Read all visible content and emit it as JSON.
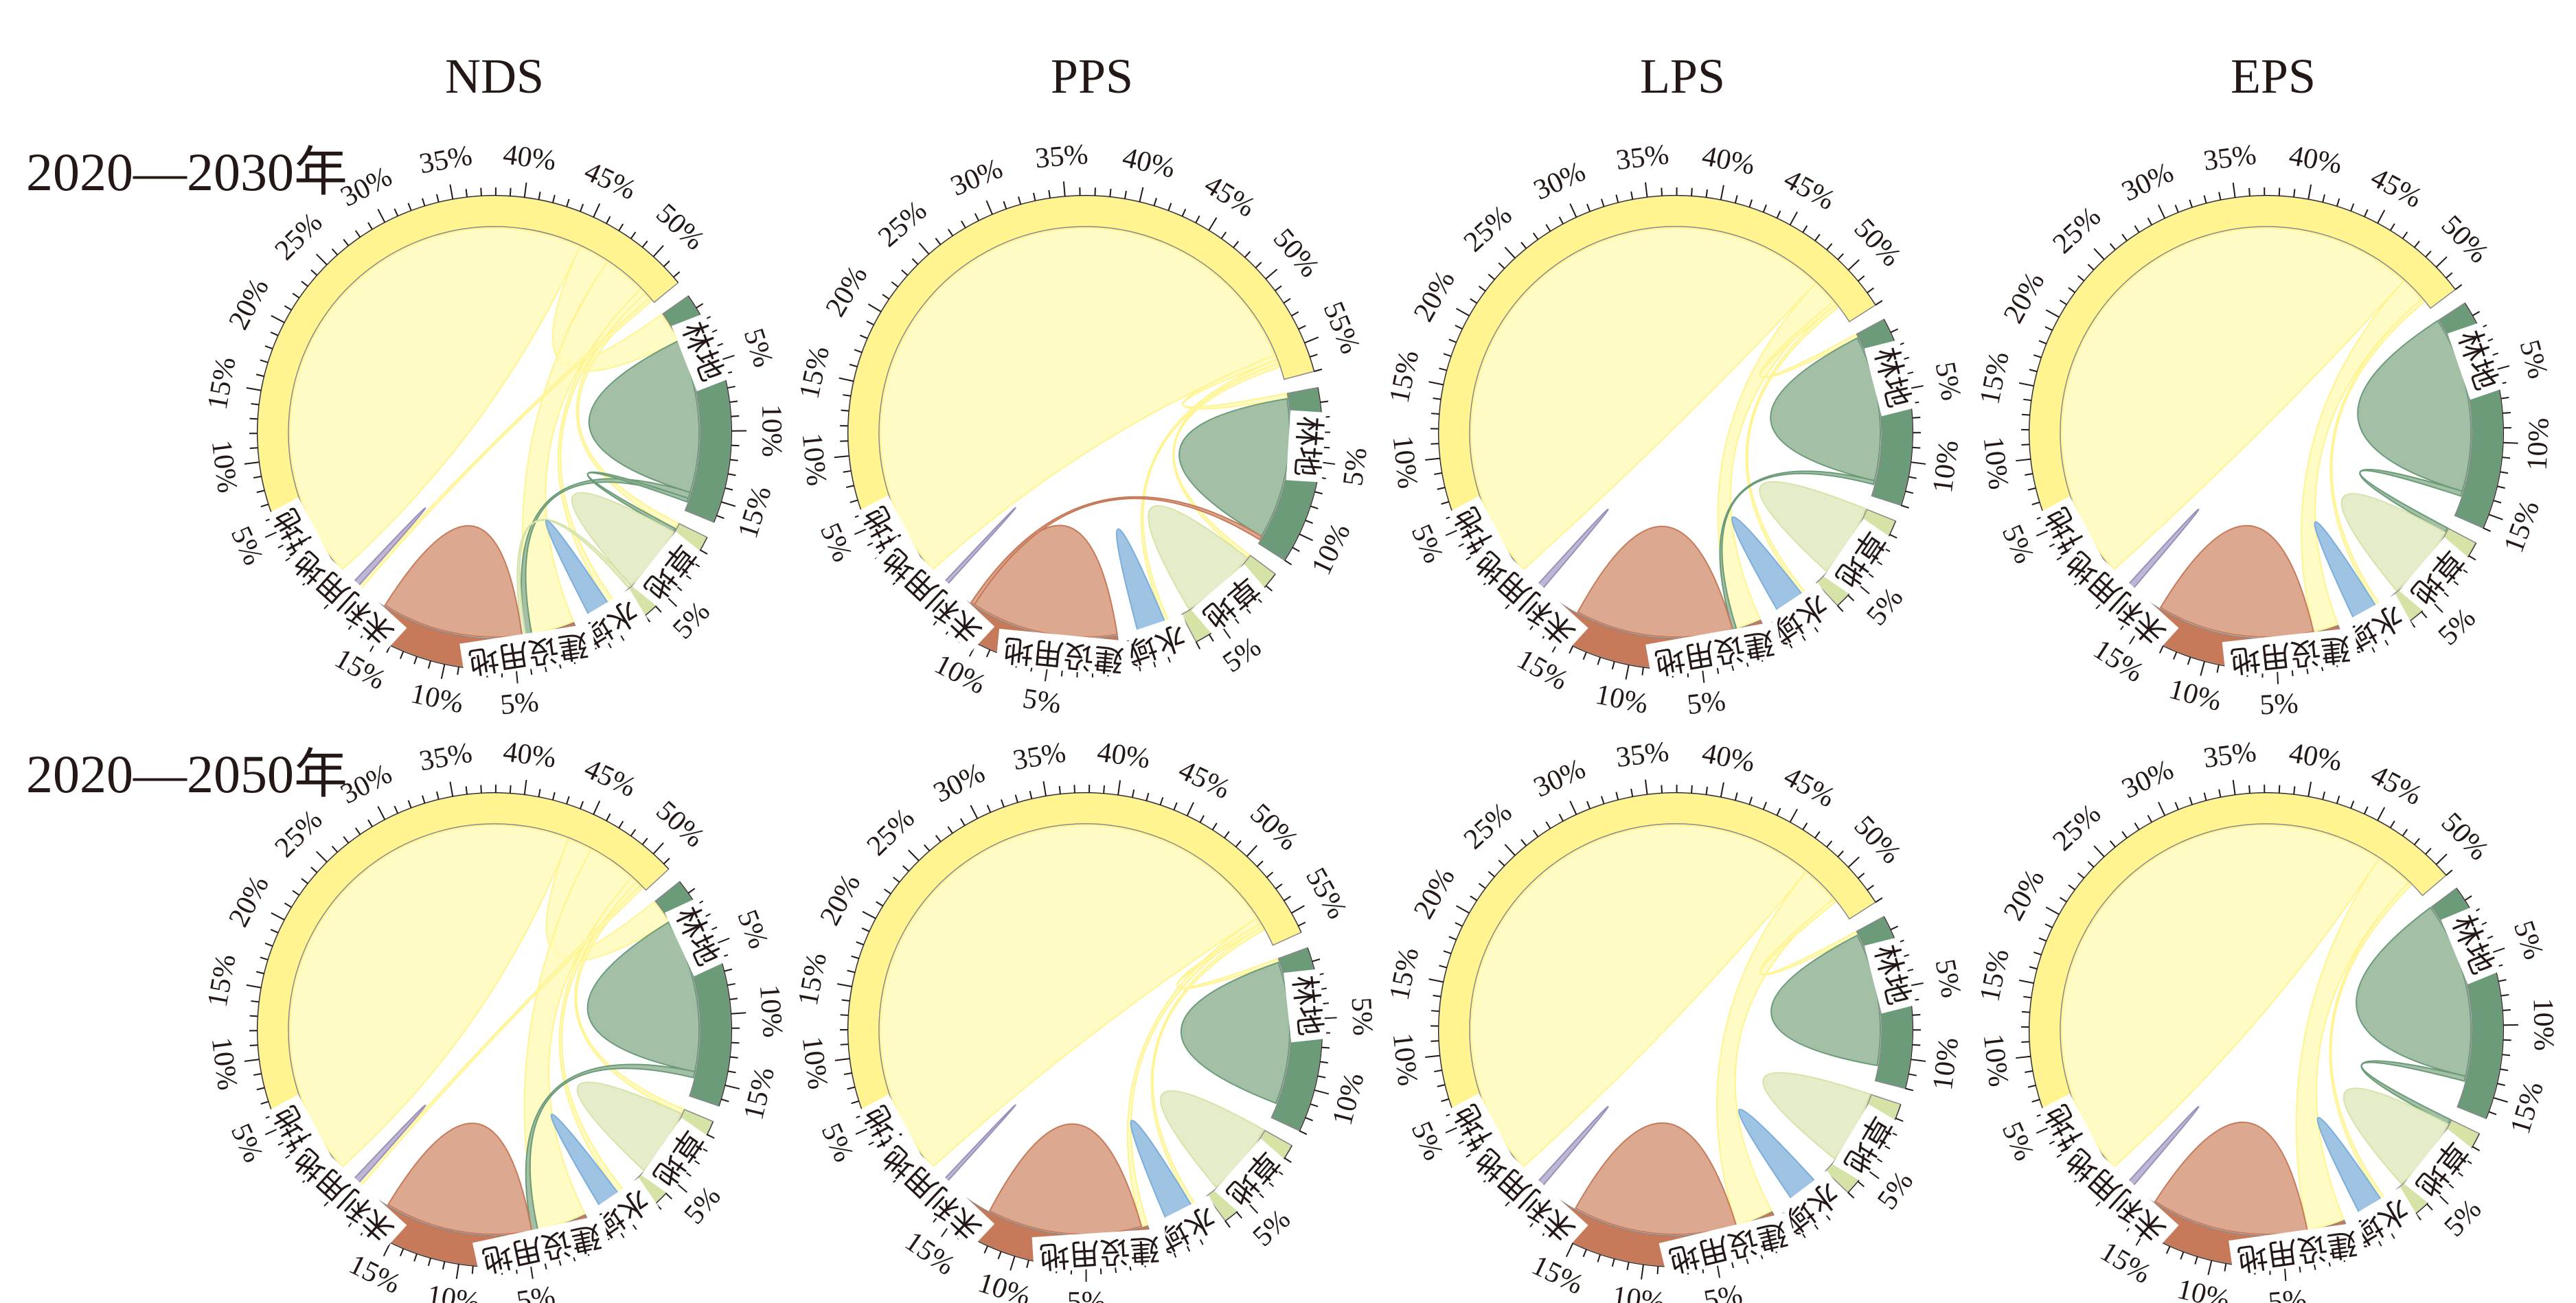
{
  "figure": {
    "column_titles": [
      "NDS",
      "PPS",
      "LPS",
      "EPS"
    ],
    "row_labels": [
      "2020—2030年",
      "2020—2050年"
    ]
  },
  "categories": [
    {
      "key": "cropland",
      "label": "耕地",
      "outer_color": "#fff48f",
      "inner_color": "#fffabb"
    },
    {
      "key": "forest",
      "label": "林地",
      "outer_color": "#6b9b79",
      "inner_color": "#93b597"
    },
    {
      "key": "grassland",
      "label": "草地",
      "outer_color": "#d6e3a6",
      "inner_color": "#e1e9c1"
    },
    {
      "key": "water",
      "label": "水域",
      "outer_color": "#7aaedc",
      "inner_color": "#8db9de"
    },
    {
      "key": "construction",
      "label": "建设用地",
      "outer_color": "#c77a5a",
      "inner_color": "#d6997d"
    },
    {
      "key": "unused",
      "label": "未利用地",
      "outer_color": "#9a8fb8",
      "inner_color": "#b3a9cc"
    }
  ],
  "chart_data": [
    {
      "type": "chord",
      "title": "NDS",
      "row": "2020—2030年",
      "sector_percent": {
        "cropland": 52.5,
        "forest": 16.5,
        "grassland": 7.0,
        "water": 2.5,
        "construction": 17.0,
        "unused": 1.0
      },
      "tick_step_percent": 5,
      "flows": [
        {
          "from": "cropland",
          "to": "cropland",
          "value": 45.0
        },
        {
          "from": "cropland",
          "to": "forest",
          "value": 2.5
        },
        {
          "from": "cropland",
          "to": "construction",
          "value": 3.5
        },
        {
          "from": "cropland",
          "to": "water",
          "value": 0.5
        },
        {
          "from": "cropland",
          "to": "grassland",
          "value": 0.5
        },
        {
          "from": "cropland",
          "to": "unused",
          "value": 0.3
        },
        {
          "from": "forest",
          "to": "forest",
          "value": 12.5
        },
        {
          "from": "forest",
          "to": "construction",
          "value": 0.5
        },
        {
          "from": "forest",
          "to": "grassland",
          "value": 0.3
        },
        {
          "from": "grassland",
          "to": "grassland",
          "value": 5.5
        },
        {
          "from": "grassland",
          "to": "construction",
          "value": 0.3
        },
        {
          "from": "water",
          "to": "water",
          "value": 1.8
        },
        {
          "from": "construction",
          "to": "construction",
          "value": 11.5
        },
        {
          "from": "unused",
          "to": "unused",
          "value": 0.5
        }
      ]
    },
    {
      "type": "chord",
      "title": "PPS",
      "row": "2020—2030年",
      "sector_percent": {
        "cropland": 57.0,
        "forest": 12.0,
        "grassland": 7.0,
        "water": 3.0,
        "construction": 13.0,
        "unused": 0.5
      },
      "tick_step_percent": 5,
      "flows": [
        {
          "from": "cropland",
          "to": "cropland",
          "value": 55.0
        },
        {
          "from": "cropland",
          "to": "forest",
          "value": 0.4
        },
        {
          "from": "cropland",
          "to": "water",
          "value": 0.3
        },
        {
          "from": "cropland",
          "to": "grassland",
          "value": 0.3
        },
        {
          "from": "forest",
          "to": "forest",
          "value": 11.0
        },
        {
          "from": "grassland",
          "to": "grassland",
          "value": 6.0
        },
        {
          "from": "water",
          "to": "water",
          "value": 2.2
        },
        {
          "from": "construction",
          "to": "construction",
          "value": 11.5
        },
        {
          "from": "construction",
          "to": "forest",
          "value": 0.3
        },
        {
          "from": "unused",
          "to": "unused",
          "value": 0.3
        }
      ]
    },
    {
      "type": "chord",
      "title": "LPS",
      "row": "2020—2030年",
      "sector_percent": {
        "cropland": 53.0,
        "forest": 13.0,
        "grassland": 7.0,
        "water": 3.0,
        "construction": 17.0,
        "unused": 1.0
      },
      "tick_step_percent": 5,
      "flows": [
        {
          "from": "cropland",
          "to": "cropland",
          "value": 49.0
        },
        {
          "from": "cropland",
          "to": "construction",
          "value": 2.0
        },
        {
          "from": "cropland",
          "to": "forest",
          "value": 0.3
        },
        {
          "from": "cropland",
          "to": "water",
          "value": 0.3
        },
        {
          "from": "forest",
          "to": "forest",
          "value": 11.5
        },
        {
          "from": "forest",
          "to": "construction",
          "value": 0.3
        },
        {
          "from": "grassland",
          "to": "grassland",
          "value": 5.8
        },
        {
          "from": "water",
          "to": "water",
          "value": 2.3
        },
        {
          "from": "construction",
          "to": "construction",
          "value": 12.5
        },
        {
          "from": "unused",
          "to": "unused",
          "value": 0.5
        }
      ]
    },
    {
      "type": "chord",
      "title": "EPS",
      "row": "2020—2030年",
      "sector_percent": {
        "cropland": 52.0,
        "forest": 16.0,
        "grassland": 7.0,
        "water": 2.5,
        "construction": 16.0,
        "unused": 1.0
      },
      "tick_step_percent": 5,
      "flows": [
        {
          "from": "cropland",
          "to": "cropland",
          "value": 49.0
        },
        {
          "from": "cropland",
          "to": "construction",
          "value": 2.0
        },
        {
          "from": "cropland",
          "to": "water",
          "value": 0.3
        },
        {
          "from": "forest",
          "to": "forest",
          "value": 14.0
        },
        {
          "from": "forest",
          "to": "grassland",
          "value": 0.4
        },
        {
          "from": "grassland",
          "to": "grassland",
          "value": 6.0
        },
        {
          "from": "water",
          "to": "water",
          "value": 2.0
        },
        {
          "from": "construction",
          "to": "construction",
          "value": 12.5
        },
        {
          "from": "unused",
          "to": "unused",
          "value": 0.5
        }
      ]
    },
    {
      "type": "chord",
      "title": "NDS",
      "row": "2020—2050年",
      "sector_percent": {
        "cropland": 51.5,
        "forest": 16.5,
        "grassland": 7.0,
        "water": 2.5,
        "construction": 18.0,
        "unused": 1.0
      },
      "tick_step_percent": 5,
      "flows": [
        {
          "from": "cropland",
          "to": "cropland",
          "value": 44.0
        },
        {
          "from": "cropland",
          "to": "forest",
          "value": 2.0
        },
        {
          "from": "cropland",
          "to": "construction",
          "value": 4.0
        },
        {
          "from": "cropland",
          "to": "water",
          "value": 0.5
        },
        {
          "from": "cropland",
          "to": "grassland",
          "value": 0.4
        },
        {
          "from": "cropland",
          "to": "unused",
          "value": 0.3
        },
        {
          "from": "forest",
          "to": "forest",
          "value": 12.5
        },
        {
          "from": "forest",
          "to": "construction",
          "value": 0.5
        },
        {
          "from": "grassland",
          "to": "grassland",
          "value": 5.5
        },
        {
          "from": "water",
          "to": "water",
          "value": 1.8
        },
        {
          "from": "construction",
          "to": "construction",
          "value": 12.0
        },
        {
          "from": "unused",
          "to": "unused",
          "value": 0.5
        }
      ]
    },
    {
      "type": "chord",
      "title": "PPS",
      "row": "2020—2050年",
      "sector_percent": {
        "cropland": 56.5,
        "forest": 13.0,
        "grassland": 7.0,
        "water": 3.0,
        "construction": 16.0,
        "unused": 0.5
      },
      "tick_step_percent": 5,
      "flows": [
        {
          "from": "cropland",
          "to": "cropland",
          "value": 54.0
        },
        {
          "from": "cropland",
          "to": "construction",
          "value": 0.5
        },
        {
          "from": "cropland",
          "to": "forest",
          "value": 0.3
        },
        {
          "from": "cropland",
          "to": "water",
          "value": 0.3
        },
        {
          "from": "forest",
          "to": "forest",
          "value": 11.5
        },
        {
          "from": "grassland",
          "to": "grassland",
          "value": 6.0
        },
        {
          "from": "water",
          "to": "water",
          "value": 2.3
        },
        {
          "from": "construction",
          "to": "construction",
          "value": 12.5
        },
        {
          "from": "unused",
          "to": "unused",
          "value": 0.3
        }
      ]
    },
    {
      "type": "chord",
      "title": "LPS",
      "row": "2020—2050年",
      "sector_percent": {
        "cropland": 53.0,
        "forest": 12.0,
        "grassland": 7.0,
        "water": 3.0,
        "construction": 18.0,
        "unused": 1.0
      },
      "tick_step_percent": 5,
      "flows": [
        {
          "from": "cropland",
          "to": "cropland",
          "value": 48.0
        },
        {
          "from": "cropland",
          "to": "construction",
          "value": 3.0
        },
        {
          "from": "cropland",
          "to": "forest",
          "value": 0.3
        },
        {
          "from": "forest",
          "to": "forest",
          "value": 10.5
        },
        {
          "from": "grassland",
          "to": "grassland",
          "value": 5.8
        },
        {
          "from": "water",
          "to": "water",
          "value": 2.3
        },
        {
          "from": "construction",
          "to": "construction",
          "value": 13.0
        },
        {
          "from": "unused",
          "to": "unused",
          "value": 0.5
        }
      ]
    },
    {
      "type": "chord",
      "title": "EPS",
      "row": "2020—2050年",
      "sector_percent": {
        "cropland": 51.0,
        "forest": 16.5,
        "grassland": 7.0,
        "water": 2.5,
        "construction": 16.5,
        "unused": 1.0
      },
      "tick_step_percent": 5,
      "flows": [
        {
          "from": "cropland",
          "to": "cropland",
          "value": 46.5
        },
        {
          "from": "cropland",
          "to": "construction",
          "value": 3.0
        },
        {
          "from": "cropland",
          "to": "water",
          "value": 0.3
        },
        {
          "from": "forest",
          "to": "forest",
          "value": 14.0
        },
        {
          "from": "forest",
          "to": "grassland",
          "value": 0.4
        },
        {
          "from": "grassland",
          "to": "grassland",
          "value": 6.0
        },
        {
          "from": "water",
          "to": "water",
          "value": 2.0
        },
        {
          "from": "construction",
          "to": "construction",
          "value": 12.5
        },
        {
          "from": "unused",
          "to": "unused",
          "value": 0.5
        }
      ]
    }
  ]
}
